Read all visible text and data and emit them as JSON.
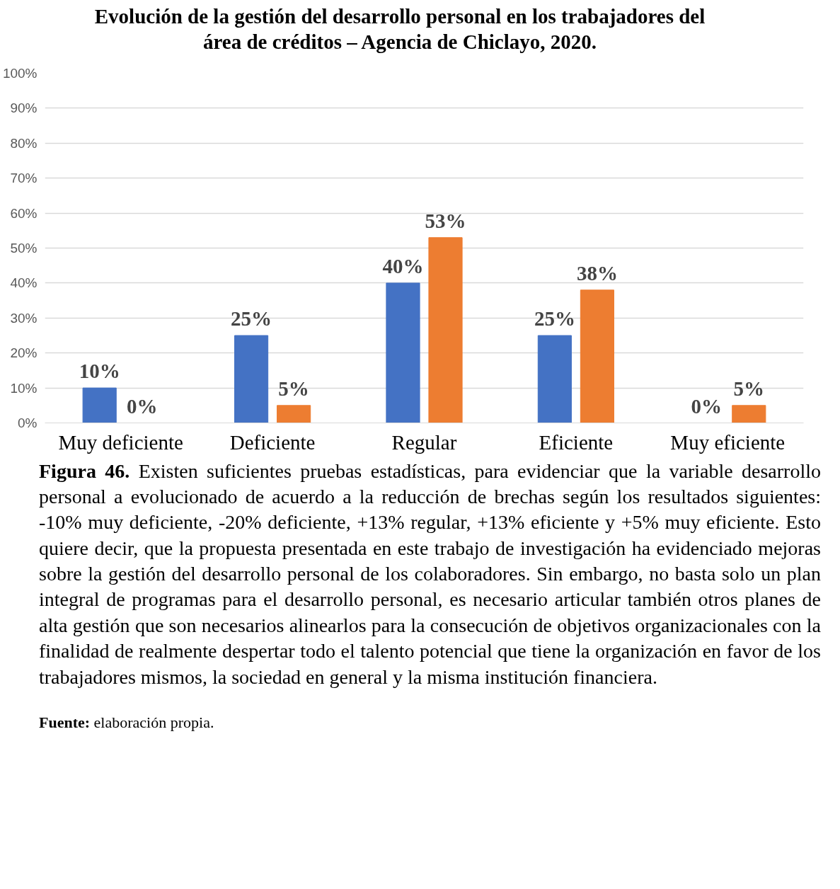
{
  "chart_data": {
    "type": "bar",
    "title": "Evolución de la gestión del desarrollo personal en los trabajadores del área de créditos – Agencia de Chiclayo, 2020.",
    "categories": [
      "Muy deficiente",
      "Deficiente",
      "Regular",
      "Eficiente",
      "Muy eficiente"
    ],
    "series": [
      {
        "color": "#4472c4",
        "values": [
          10,
          25,
          40,
          25,
          0
        ],
        "value_labels": [
          "10%",
          "25%",
          "40%",
          "25%",
          "0%"
        ]
      },
      {
        "color": "#ed7d31",
        "values": [
          0,
          5,
          53,
          38,
          5
        ],
        "value_labels": [
          "0%",
          "5%",
          "53%",
          "38%",
          "5%"
        ]
      }
    ],
    "ylim": [
      0,
      100
    ],
    "yticks": [
      {
        "value": 0,
        "label": "0%"
      },
      {
        "value": 10,
        "label": "10%"
      },
      {
        "value": 20,
        "label": "20%"
      },
      {
        "value": 30,
        "label": "30%"
      },
      {
        "value": 40,
        "label": "40%"
      },
      {
        "value": 50,
        "label": "50%"
      },
      {
        "value": 60,
        "label": "60%"
      },
      {
        "value": 70,
        "label": "70%"
      },
      {
        "value": 80,
        "label": "80%"
      },
      {
        "value": 90,
        "label": "90%"
      },
      {
        "value": 100,
        "label": "100%"
      }
    ],
    "grid": "y",
    "annotations": [
      "Figura 46. Existen suficientes pruebas estadísticas, para evidenciar que la variable desarrollo personal a evolucionado de acuerdo a la reducción de brechas según los resultados siguientes: -10% muy deficiente, -20% deficiente, +13% regular, +13% eficiente y +5% muy eficiente. Esto quiere decir, que la propuesta presentada en este trabajo de investigación ha evidenciado mejoras sobre la gestión del desarrollo personal de los colaboradores. Sin embargo, no basta solo un plan integral de programas para el desarrollo personal, es necesario articular también otros planes de alta gestión que son necesarios alinearlos para la consecución de objetivos organizacionales con la finalidad de realmente despertar todo el talento potencial que tiene la organización en favor de los trabajadores mismos, la sociedad en general y la misma institución financiera.",
      "Fuente: elaboración propia."
    ]
  }
}
